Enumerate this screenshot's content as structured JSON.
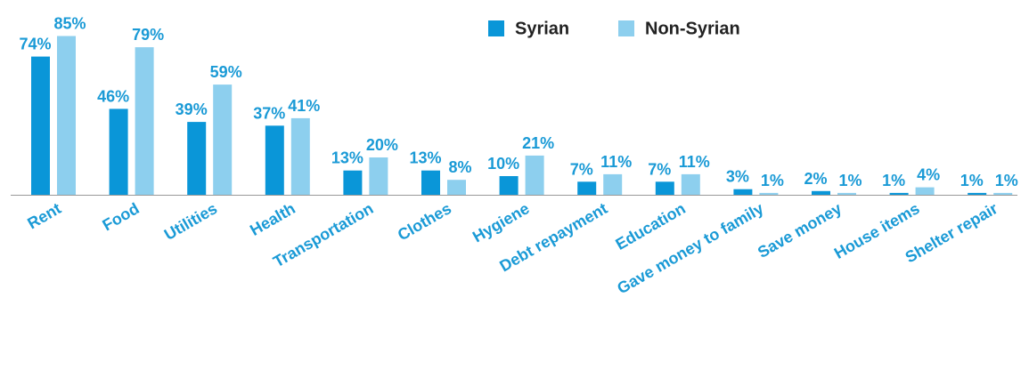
{
  "chart_data": {
    "type": "bar",
    "categories": [
      "Rent",
      "Food",
      "Utilities",
      "Health",
      "Transportation",
      "Clothes",
      "Hygiene",
      "Debt repayment",
      "Education",
      "Gave money to family",
      "Save money",
      "House items",
      "Shelter repair"
    ],
    "series": [
      {
        "name": "Syrian",
        "color": "#0a96d8",
        "values": [
          74,
          46,
          39,
          37,
          13,
          13,
          10,
          7,
          7,
          3,
          2,
          1,
          1
        ],
        "value_labels": [
          "74%",
          "46%",
          "39%",
          "37%",
          "13%",
          "13%",
          "10%",
          "7%",
          "7%",
          "3%",
          "2%",
          "1%",
          "1%"
        ]
      },
      {
        "name": "Non-Syrian",
        "color": "#8dcfee",
        "values": [
          85,
          79,
          59,
          41,
          20,
          8,
          21,
          11,
          11,
          1,
          1,
          4,
          1
        ],
        "value_labels": [
          "85%",
          "79%",
          "59%",
          "41%",
          "20%",
          "8%",
          "21%",
          "11%",
          "11%",
          "1%",
          "1%",
          "4%",
          "1%"
        ]
      }
    ]
  }
}
